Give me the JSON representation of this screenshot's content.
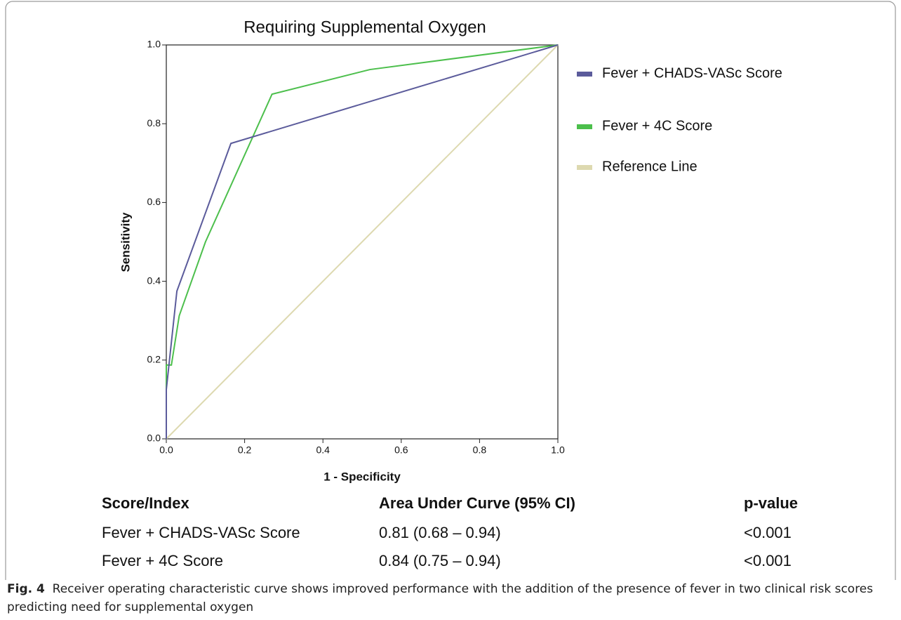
{
  "chart_data": {
    "type": "line",
    "title": "Requiring Supplemental Oxygen",
    "x_label": "1 - Specificity",
    "y_label": "Sensitivity",
    "xlim": [
      0,
      1
    ],
    "ylim": [
      0,
      1
    ],
    "xticks": [
      {
        "value": 0,
        "label": "0.0"
      },
      0.2,
      0.4,
      0.6,
      0.8,
      {
        "value": 1,
        "label": "1.0"
      }
    ],
    "yticks": [
      {
        "value": 0,
        "label": "0.0"
      },
      0.2,
      0.4,
      0.6,
      0.8,
      {
        "value": 1,
        "label": "1.0"
      }
    ],
    "legend": "right",
    "series": [
      {
        "name": "Fever + CHADS-VASc Score",
        "color": "#5b5b9b",
        "x": [
          0,
          0,
          0.027,
          0.165,
          1
        ],
        "values": [
          0,
          0.125,
          0.375,
          0.75,
          1
        ]
      },
      {
        "name": "Fever + 4C Score",
        "color": "#4cbf4c",
        "x": [
          0,
          0,
          0.013,
          0.033,
          0.1,
          0.27,
          0.52,
          1
        ],
        "values": [
          0,
          0.1875,
          0.1875,
          0.3125,
          0.5,
          0.875,
          0.9375,
          1
        ]
      },
      {
        "name": "Reference Line",
        "color": "#ddd9b0",
        "x": [
          0,
          1
        ],
        "values": [
          0,
          1
        ]
      }
    ]
  },
  "table": {
    "header": [
      "Score/Index",
      "Area Under Curve (95% CI)",
      "p-value"
    ],
    "rows": [
      [
        "Fever + CHADS-VASc Score",
        "0.81 (0.68 – 0.94)",
        "<0.001"
      ],
      [
        "Fever + 4C Score",
        "0.84 (0.75 – 0.94)",
        "<0.001"
      ]
    ]
  },
  "caption": {
    "label": "Fig. 4",
    "text": "Receiver operating characteristic curve shows improved performance with the addition of the presence of fever in two clinical risk scores predicting need for supplemental oxygen"
  }
}
